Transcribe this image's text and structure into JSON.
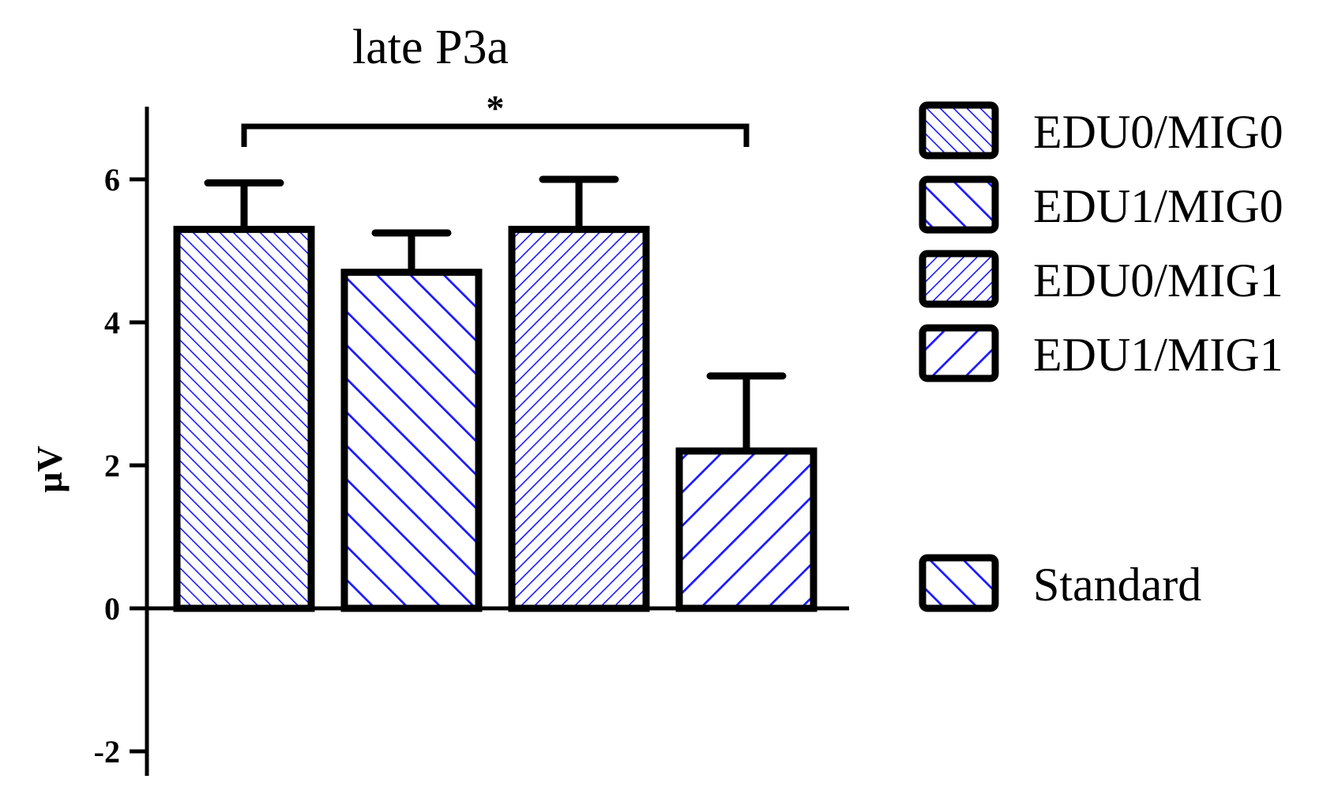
{
  "chart_data": {
    "type": "bar",
    "title": "late P3a",
    "xlabel": "",
    "ylabel": "µV",
    "ylim": [
      -2.4,
      7
    ],
    "yticks": [
      -2,
      0,
      2,
      4,
      6
    ],
    "grid": false,
    "legend_position": "right",
    "colors": {
      "hatch": "#1a1aff",
      "outline": "#000000",
      "fill": "#ffffff"
    },
    "series": [
      {
        "name": "EDU0/MIG0",
        "value": 5.3,
        "error": 0.65,
        "hatch": "fine-backslash"
      },
      {
        "name": "EDU1/MIG0",
        "value": 4.7,
        "error": 0.55,
        "hatch": "wide-backslash"
      },
      {
        "name": "EDU0/MIG1",
        "value": 5.3,
        "error": 0.7,
        "hatch": "fine-slash"
      },
      {
        "name": "EDU1/MIG1",
        "value": 2.2,
        "error": 1.05,
        "hatch": "wide-slash"
      }
    ],
    "extra_legend": {
      "name": "Standard",
      "hatch": "wide-backslash"
    },
    "significance": [
      {
        "from": 0,
        "to": 3,
        "label": "*"
      }
    ]
  }
}
